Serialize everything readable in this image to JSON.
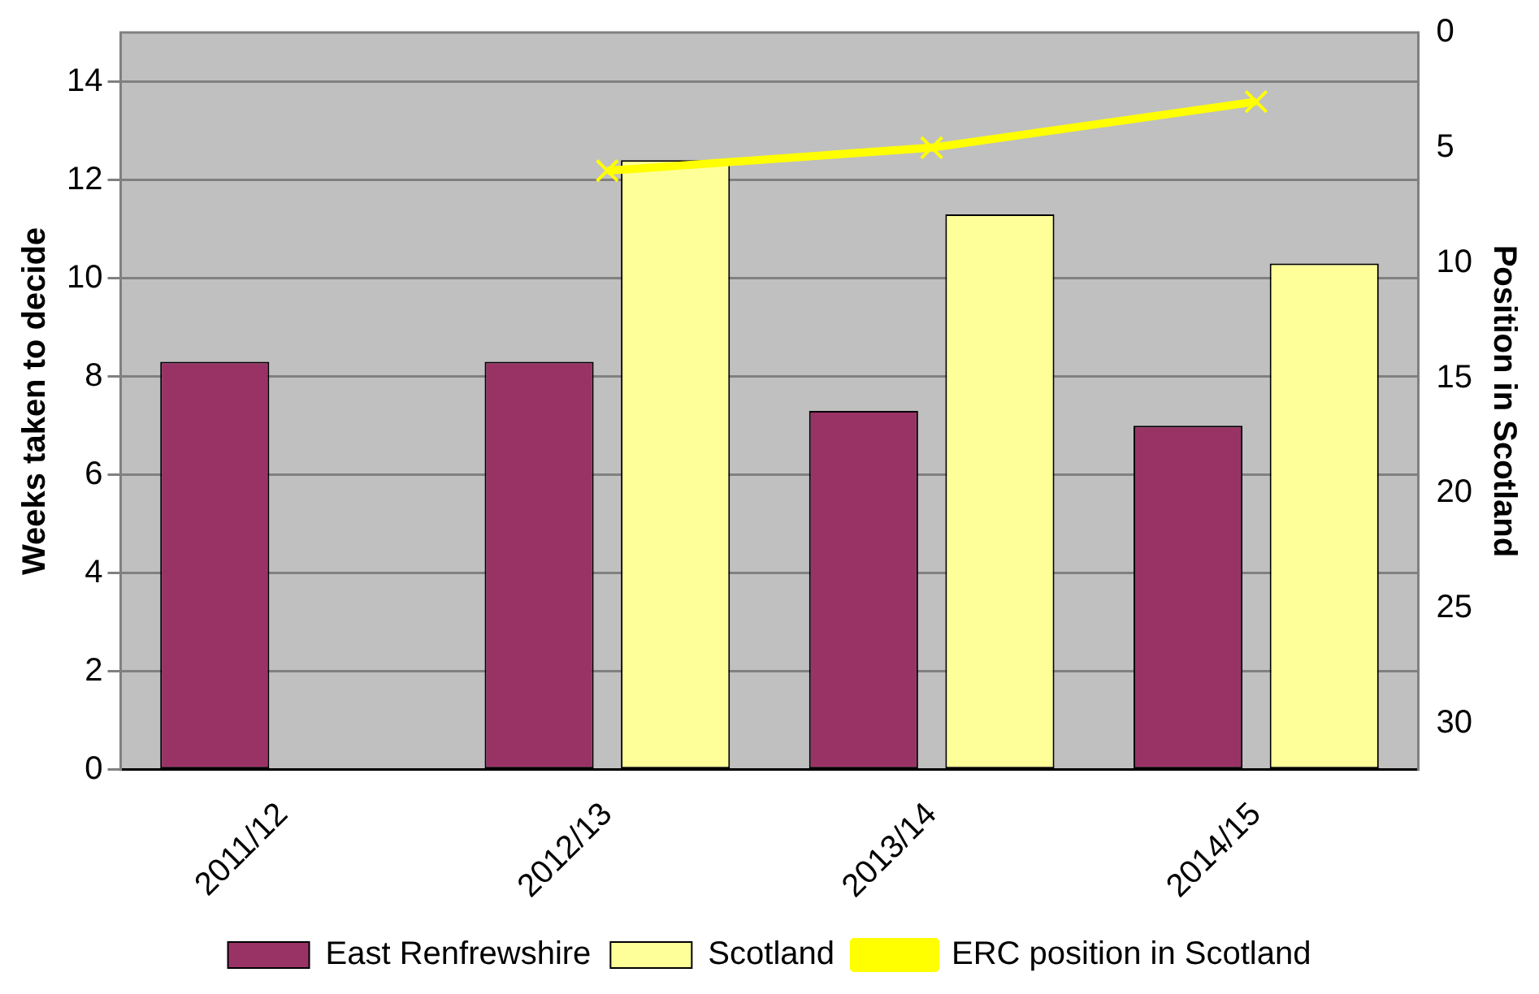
{
  "chart_data": {
    "type": "bar",
    "categories": [
      "2011/12",
      "2012/13",
      "2013/14",
      "2014/15"
    ],
    "ylabel": "Weeks taken to decide",
    "y2label": "Position in Scotland",
    "series": [
      {
        "name": "East Renfrewshire",
        "color": "#993366",
        "values": [
          8.3,
          8.3,
          7.3,
          7.0
        ]
      },
      {
        "name": "Scotland",
        "color": "#ffff99",
        "values": [
          null,
          12.4,
          11.3,
          10.3
        ]
      },
      {
        "name": "ERC position in Scotland",
        "type": "line",
        "axis": "y2",
        "color": "#ffff00",
        "marker": "cross",
        "values": [
          null,
          6,
          5,
          3
        ]
      }
    ],
    "ylim": [
      0,
      15
    ],
    "yticks": [
      0,
      2,
      4,
      6,
      8,
      10,
      12,
      14
    ],
    "y2lim": [
      32,
      0
    ],
    "y2ticks": [
      0,
      5,
      10,
      15,
      20,
      25,
      30
    ],
    "grid": "y",
    "legend": "bottom"
  }
}
